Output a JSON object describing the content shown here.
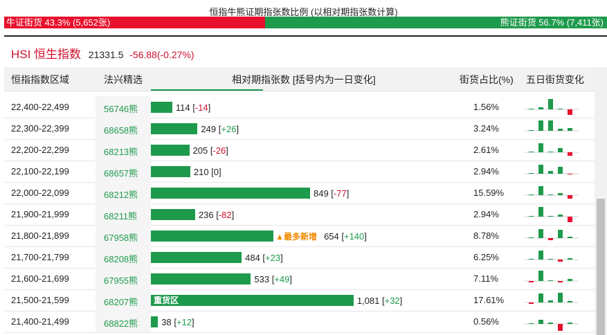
{
  "title": "恒指牛熊证期指张数比例 (以相对期指张数计算)",
  "ratio": {
    "bull_label": "牛证街货 43.3% (5,652张)",
    "bear_label": "熊证街货 56.7% (7,411张)",
    "bull_fraction": 0.433,
    "colors": {
      "bull": "#e8112d",
      "bear": "#1e9a4c"
    }
  },
  "index": {
    "name": "HSI 恒生指数",
    "value": "21331.5",
    "change": "-56.88(-0.27%)"
  },
  "columns": [
    "恒指指数区域",
    "法兴精选",
    "相对期指张数 [括号内为一日变化]",
    "街货占比(%)",
    "五日街货变化"
  ],
  "rows": [
    {
      "range": "22,400-22,499",
      "code": "56746熊",
      "count": "114",
      "delta": "-14",
      "delta_dir": "dn",
      "pct": "1.56%",
      "value": 114,
      "tag": "",
      "barlabel": "",
      "five": [
        0,
        3,
        15,
        1,
        -8
      ]
    },
    {
      "range": "22,300-22,399",
      "code": "68658熊",
      "count": "249",
      "delta": "+26",
      "delta_dir": "up",
      "pct": "3.24%",
      "value": 249,
      "tag": "",
      "barlabel": "",
      "five": [
        1,
        15,
        15,
        3,
        4
      ]
    },
    {
      "range": "22,200-22,299",
      "code": "68213熊",
      "count": "205",
      "delta": "-26",
      "delta_dir": "dn",
      "pct": "2.61%",
      "value": 205,
      "tag": "",
      "barlabel": "",
      "five": [
        0,
        13,
        1,
        6,
        -5
      ]
    },
    {
      "range": "22,100-22,199",
      "code": "68657熊",
      "count": "210",
      "delta": "0",
      "delta_dir": "",
      "pct": "2.94%",
      "value": 210,
      "tag": "",
      "barlabel": "",
      "five": [
        1,
        13,
        4,
        10,
        -1
      ]
    },
    {
      "range": "22,000-22,099",
      "code": "68212熊",
      "count": "849",
      "delta": "-77",
      "delta_dir": "dn",
      "pct": "15.59%",
      "value": 849,
      "tag": "",
      "barlabel": "",
      "five": [
        1,
        13,
        1,
        3,
        -5
      ]
    },
    {
      "range": "21,900-21,999",
      "code": "68211熊",
      "count": "236",
      "delta": "-82",
      "delta_dir": "dn",
      "pct": "2.94%",
      "value": 236,
      "tag": "",
      "barlabel": "",
      "five": [
        0,
        14,
        1,
        3,
        -8
      ]
    },
    {
      "range": "21,800-21,899",
      "code": "67958熊",
      "count": "654",
      "delta": "+140",
      "delta_dir": "up",
      "pct": "8.78%",
      "value": 654,
      "tag": "▲最多新增",
      "barlabel": "",
      "five": [
        1,
        13,
        -3,
        12,
        2
      ]
    },
    {
      "range": "21,700-21,799",
      "code": "68208熊",
      "count": "484",
      "delta": "+23",
      "delta_dir": "up",
      "pct": "6.25%",
      "value": 484,
      "tag": "",
      "barlabel": "",
      "five": [
        0,
        13,
        1,
        -3,
        2
      ]
    },
    {
      "range": "21,600-21,699",
      "code": "67955熊",
      "count": "533",
      "delta": "+49",
      "delta_dir": "up",
      "pct": "7.11%",
      "value": 533,
      "tag": "",
      "barlabel": "",
      "five": [
        -2,
        15,
        1,
        -2,
        3
      ]
    },
    {
      "range": "21,500-21,599",
      "code": "68207熊",
      "count": "1,081",
      "delta": "+32",
      "delta_dir": "up",
      "pct": "17.61%",
      "value": 1081,
      "tag": "",
      "barlabel": "重货区",
      "five": [
        -2,
        13,
        3,
        14,
        2
      ]
    },
    {
      "range": "21,400-21,499",
      "code": "68822熊",
      "count": "38",
      "delta": "+12",
      "delta_dir": "up",
      "pct": "0.56%",
      "value": 38,
      "tag": "",
      "barlabel": "",
      "five": [
        0,
        6,
        2,
        -14,
        2
      ]
    }
  ]
}
